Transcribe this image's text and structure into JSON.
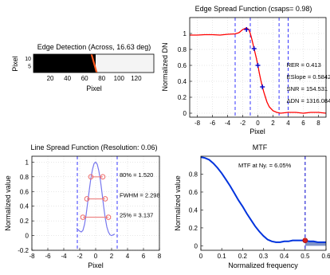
{
  "chart_data": [
    {
      "id": "edge",
      "type": "heatmap",
      "title": "Edge Detection (Across, 16.63 deg)",
      "xlabel": "Pixel",
      "ylabel": "Pixel",
      "xlim": [
        0.5,
        140.5
      ],
      "ylim": [
        0.5,
        12.5
      ],
      "x_ticks": [
        20,
        40,
        60,
        80,
        100,
        120
      ],
      "y_ticks": [
        5,
        10
      ],
      "edge_line": {
        "x": [
          74,
          68
        ],
        "y": [
          0.5,
          12.5
        ]
      },
      "colors": {
        "dark": "#000000",
        "light": "#f4f4f4",
        "edge": "#ff5a1e"
      }
    },
    {
      "id": "esf",
      "type": "line",
      "title": "Edge Spread Function (csaps= 0.98)",
      "xlabel": "Pixel",
      "ylabel": "Normalized DN",
      "xlim": [
        -9,
        9
      ],
      "ylim": [
        -0.05,
        1.2
      ],
      "x_ticks": [
        -8,
        -6,
        -4,
        -2,
        0,
        2,
        4,
        6,
        8
      ],
      "y_ticks": [
        0,
        0.2,
        0.4,
        0.6,
        0.8,
        1
      ],
      "series": [
        {
          "role": "fit",
          "color": "#ff0000",
          "x": [
            -9,
            -8,
            -7,
            -6,
            -5,
            -4,
            -3,
            -2.5,
            -2,
            -1.5,
            -1.2,
            -1,
            -0.8,
            -0.6,
            -0.4,
            -0.2,
            0,
            0.2,
            0.4,
            0.6,
            0.8,
            1,
            1.2,
            1.5,
            2,
            2.5,
            3,
            4,
            5,
            6,
            7,
            8,
            9
          ],
          "y": [
            0.98,
            0.98,
            0.985,
            0.985,
            0.98,
            0.99,
            0.995,
            1.01,
            1.05,
            1.07,
            1.05,
            1.0,
            0.93,
            0.85,
            0.77,
            0.69,
            0.6,
            0.5,
            0.41,
            0.33,
            0.26,
            0.2,
            0.14,
            0.08,
            0.03,
            0.01,
            0.0,
            0.01,
            0.01,
            0.0,
            0.01,
            0.01,
            0.0
          ]
        }
      ],
      "markers": [
        {
          "x": -1.5,
          "y": 1.05,
          "color": "#0000cc"
        },
        {
          "x": -0.5,
          "y": 0.81,
          "color": "#0000cc"
        },
        {
          "x": 0,
          "y": 0.6,
          "color": "#0000cc"
        },
        {
          "x": 0.6,
          "y": 0.33,
          "color": "#0000cc"
        }
      ],
      "vlines": [
        {
          "x": -3,
          "color": "#2222ff"
        },
        {
          "x": -1,
          "color": "#2222ff"
        },
        {
          "x": 2.8,
          "color": "#2222ff"
        },
        {
          "x": 4,
          "color": "#2222ff"
        }
      ],
      "annotations": [
        {
          "text": "RER = 0.413",
          "x": 3.8,
          "y": 0.58
        },
        {
          "text": "ESlope = 0.5842",
          "x": 3.8,
          "y": 0.43
        },
        {
          "text": "SNR = 154.531",
          "x": 3.8,
          "y": 0.28
        },
        {
          "text": "ΔDN = 1316.084",
          "x": 3.8,
          "y": 0.13
        }
      ]
    },
    {
      "id": "lsf",
      "type": "line",
      "title": "Line Spread Function (Resolution: 0.06)",
      "xlabel": "Pixel",
      "ylabel": "Normalized value",
      "xlim": [
        -8,
        8
      ],
      "ylim": [
        -0.2,
        1.08
      ],
      "x_ticks": [
        -8,
        -6,
        -4,
        -2,
        0,
        2,
        4,
        6,
        8
      ],
      "y_ticks": [
        -0.2,
        0,
        0.2,
        0.4,
        0.6,
        0.8,
        1
      ],
      "series": [
        {
          "role": "lsf",
          "color": "#7777ee",
          "x": [
            -2.4,
            -2.0,
            -1.8,
            -1.6,
            -1.4,
            -1.2,
            -1.0,
            -0.8,
            -0.6,
            -0.4,
            -0.2,
            0,
            0.2,
            0.4,
            0.6,
            0.8,
            1.0,
            1.2,
            1.4,
            1.6,
            1.8,
            2.0,
            2.2,
            2.4
          ],
          "y": [
            0.1,
            0.06,
            0.05,
            0.07,
            0.15,
            0.28,
            0.45,
            0.62,
            0.78,
            0.9,
            0.98,
            1.0,
            0.97,
            0.88,
            0.75,
            0.58,
            0.4,
            0.24,
            0.12,
            0.05,
            0.01,
            0.0,
            0.01,
            0.02
          ]
        }
      ],
      "width_levels": [
        {
          "y": 0.8,
          "x1": -0.6,
          "x2": 0.9
        },
        {
          "y": 0.5,
          "x1": -1.1,
          "x2": 1.2
        },
        {
          "y": 0.25,
          "x1": -1.6,
          "x2": 1.6
        }
      ],
      "vlines": [
        {
          "x": -2.3,
          "color": "#2222ff"
        },
        {
          "x": 2.7,
          "color": "#2222ff"
        }
      ],
      "annotations": [
        {
          "text": "80% = 1.520",
          "x": 3.0,
          "y": 0.8
        },
        {
          "text": "FWHM = 2.298",
          "x": 3.0,
          "y": 0.52
        },
        {
          "text": "25% = 3.137",
          "x": 3.0,
          "y": 0.25
        }
      ]
    },
    {
      "id": "mtf",
      "type": "area",
      "title": "MTF",
      "xlabel": "Normalized frequency",
      "ylabel": "Normalized value",
      "xlim": [
        0,
        0.6
      ],
      "ylim": [
        -0.05,
        1.0
      ],
      "x_ticks": [
        0,
        0.1,
        0.2,
        0.3,
        0.4,
        0.5,
        0.6
      ],
      "y_ticks": [
        0,
        0.2,
        0.4,
        0.6,
        0.8
      ],
      "series": [
        {
          "role": "mtf",
          "color": "#0033dd",
          "x": [
            0,
            0.02,
            0.04,
            0.06,
            0.08,
            0.1,
            0.12,
            0.14,
            0.16,
            0.18,
            0.2,
            0.22,
            0.24,
            0.26,
            0.28,
            0.3,
            0.32,
            0.34,
            0.36,
            0.38,
            0.4,
            0.42,
            0.44,
            0.46,
            0.48,
            0.5,
            0.52,
            0.54,
            0.56,
            0.58,
            0.6
          ],
          "y": [
            0.99,
            0.98,
            0.96,
            0.92,
            0.87,
            0.81,
            0.74,
            0.67,
            0.59,
            0.51,
            0.44,
            0.36,
            0.29,
            0.22,
            0.16,
            0.11,
            0.07,
            0.05,
            0.04,
            0.04,
            0.05,
            0.05,
            0.06,
            0.06,
            0.06,
            0.06,
            0.05,
            0.05,
            0.04,
            0.04,
            0.04
          ]
        }
      ],
      "nyquist": {
        "x": 0.5,
        "y": 0.06,
        "label": "MTF at Ny. = 6.05%"
      }
    }
  ]
}
